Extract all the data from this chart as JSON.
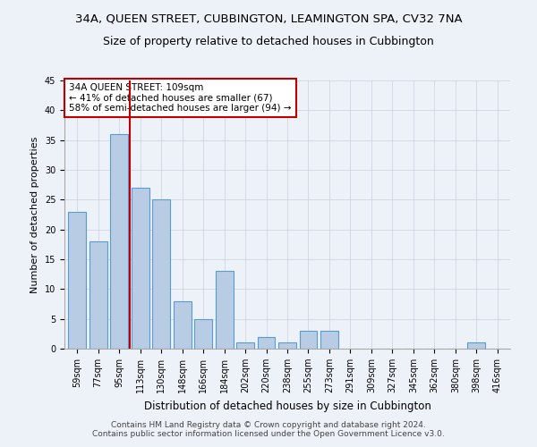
{
  "title": "34A, QUEEN STREET, CUBBINGTON, LEAMINGTON SPA, CV32 7NA",
  "subtitle": "Size of property relative to detached houses in Cubbington",
  "xlabel": "Distribution of detached houses by size in Cubbington",
  "ylabel": "Number of detached properties",
  "categories": [
    "59sqm",
    "77sqm",
    "95sqm",
    "113sqm",
    "130sqm",
    "148sqm",
    "166sqm",
    "184sqm",
    "202sqm",
    "220sqm",
    "238sqm",
    "255sqm",
    "273sqm",
    "291sqm",
    "309sqm",
    "327sqm",
    "345sqm",
    "362sqm",
    "380sqm",
    "398sqm",
    "416sqm"
  ],
  "values": [
    23,
    18,
    36,
    27,
    25,
    8,
    5,
    13,
    1,
    2,
    1,
    3,
    3,
    0,
    0,
    0,
    0,
    0,
    0,
    1,
    0
  ],
  "bar_color": "#b8cce4",
  "bar_edge_color": "#5b9bd5",
  "vline_x": 2.5,
  "vline_color": "#c00000",
  "annotation_text": "34A QUEEN STREET: 109sqm\n← 41% of detached houses are smaller (67)\n58% of semi-detached houses are larger (94) →",
  "annotation_box_color": "#ffffff",
  "annotation_box_edge_color": "#c00000",
  "ylim": [
    0,
    45
  ],
  "yticks": [
    0,
    5,
    10,
    15,
    20,
    25,
    30,
    35,
    40,
    45
  ],
  "footer": "Contains HM Land Registry data © Crown copyright and database right 2024.\nContains public sector information licensed under the Open Government Licence v3.0.",
  "bg_color": "#edf1f8",
  "plot_bg_color": "#edf1f8",
  "grid_color": "#c8d0de",
  "title_fontsize": 9.5,
  "subtitle_fontsize": 9,
  "xlabel_fontsize": 8.5,
  "ylabel_fontsize": 8,
  "tick_fontsize": 7,
  "footer_fontsize": 6.5,
  "annotation_fontsize": 7.5
}
